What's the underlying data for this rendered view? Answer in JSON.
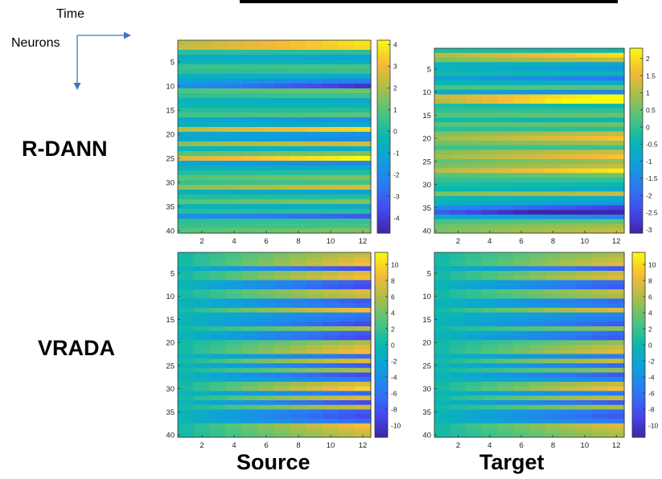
{
  "legend": {
    "time_label": "Time",
    "neurons_label": "Neurons",
    "arrow_color": "#4472c4"
  },
  "row_labels": [
    "R-DANN",
    "VRADA"
  ],
  "col_labels": [
    "Source",
    "Target"
  ],
  "chart_data": [
    {
      "type": "heatmap",
      "row": "R-DANN",
      "column": "Source",
      "x_ticks": [
        2,
        4,
        6,
        8,
        10,
        12
      ],
      "xlim": [
        0.5,
        12.5
      ],
      "y_ticks": [
        5,
        10,
        15,
        20,
        25,
        30,
        35,
        40
      ],
      "ylim": [
        0.5,
        40.5
      ],
      "colorbar_ticks": [
        4,
        3,
        2,
        1,
        0,
        -1,
        -2,
        -3,
        -4
      ],
      "clim": [
        -4.7,
        4.2
      ],
      "colormap": "parula",
      "row_base": [
        2.2,
        2.4,
        0.3,
        -0.8,
        -0.4,
        0.5,
        0.3,
        -0.6,
        -1.2,
        -1.8,
        0.8,
        0.4,
        -0.5,
        -0.3,
        0.2,
        0.6,
        -1.0,
        -0.6,
        2.2,
        -0.9,
        -1.0,
        1.6,
        -0.4,
        0.9,
        2.6,
        -1.2,
        -0.5,
        0.2,
        0.9,
        0.5,
        1.6,
        -0.6,
        0.2,
        0.9,
        -0.5,
        0.2,
        -1.8,
        0.3,
        0.5,
        0.9
      ],
      "row_drift": [
        0.8,
        0.6,
        0.0,
        -0.2,
        -0.1,
        0.1,
        0.1,
        -0.2,
        -0.6,
        -1.2,
        0.2,
        0.1,
        -0.2,
        -0.1,
        0.0,
        0.2,
        -0.4,
        -0.2,
        0.7,
        -0.4,
        -0.5,
        0.5,
        -0.2,
        0.3,
        0.8,
        -0.5,
        -0.2,
        0.0,
        0.3,
        0.1,
        0.5,
        -0.3,
        0.0,
        0.3,
        -0.2,
        0.0,
        -0.7,
        0.1,
        0.1,
        0.3
      ]
    },
    {
      "type": "heatmap",
      "row": "R-DANN",
      "column": "Target",
      "x_ticks": [
        2,
        4,
        6,
        8,
        10,
        12
      ],
      "xlim": [
        0.5,
        12.5
      ],
      "y_ticks": [
        5,
        10,
        15,
        20,
        25,
        30,
        35,
        40
      ],
      "ylim": [
        0.5,
        40.5
      ],
      "colorbar_ticks": [
        2,
        1.5,
        1,
        0.5,
        0,
        -0.5,
        -1,
        -1.5,
        -2,
        -2.5,
        -3
      ],
      "clim": [
        -3.1,
        2.3
      ],
      "colormap": "parula",
      "row_base": [
        -0.2,
        1.0,
        0.6,
        -0.5,
        -0.6,
        -0.3,
        -1.0,
        -0.4,
        0.2,
        -0.8,
        1.2,
        1.0,
        -0.2,
        0.0,
        0.3,
        -0.3,
        0.3,
        -0.1,
        0.6,
        0.9,
        0.5,
        0.1,
        0.7,
        0.9,
        0.4,
        0.6,
        1.1,
        0.3,
        0.0,
        -0.2,
        -0.4,
        0.6,
        -0.4,
        -0.6,
        -1.4,
        -2.2,
        -0.8,
        0.2,
        0.5,
        0.6
      ],
      "row_drift": [
        -0.1,
        0.5,
        0.3,
        -0.2,
        -0.3,
        -0.1,
        -0.4,
        -0.2,
        0.1,
        -0.4,
        0.6,
        0.9,
        -0.1,
        0.0,
        0.1,
        -0.1,
        0.1,
        0.0,
        0.3,
        0.4,
        0.2,
        0.0,
        0.3,
        0.4,
        0.2,
        0.3,
        0.5,
        0.1,
        0.0,
        -0.1,
        -0.2,
        0.3,
        -0.2,
        -0.3,
        -0.6,
        -0.9,
        -0.4,
        0.1,
        0.2,
        0.3
      ]
    },
    {
      "type": "heatmap",
      "row": "VRADA",
      "column": "Source",
      "x_ticks": [
        2,
        4,
        6,
        8,
        10,
        12
      ],
      "xlim": [
        0.5,
        12.5
      ],
      "y_ticks": [
        5,
        10,
        15,
        20,
        25,
        30,
        35,
        40
      ],
      "ylim": [
        0.5,
        40.5
      ],
      "colorbar_ticks": [
        10,
        8,
        6,
        4,
        2,
        0,
        -2,
        -4,
        -6,
        -8,
        -10
      ],
      "clim": [
        -11.5,
        11.5
      ],
      "colormap": "parula",
      "row_base": [
        7,
        8,
        9,
        -9,
        8,
        9,
        -8,
        -9,
        8,
        7,
        -8,
        -7,
        9,
        -6,
        -7,
        -9,
        6,
        -8,
        -9,
        6,
        8,
        9,
        -7,
        8,
        -8,
        6,
        -9,
        -6,
        8,
        10,
        -7,
        8,
        -9,
        7,
        -8,
        -9,
        -7,
        9,
        8,
        7
      ],
      "row_drift": [
        0,
        0,
        0,
        0,
        0,
        0,
        0,
        0,
        0,
        0,
        0,
        0,
        0,
        0,
        0,
        0,
        0,
        0,
        0,
        0,
        0,
        0,
        0,
        0,
        0,
        0,
        0,
        0,
        0,
        0,
        0,
        0,
        0,
        0,
        0,
        0,
        0,
        0,
        0,
        0
      ]
    },
    {
      "type": "heatmap",
      "row": "VRADA",
      "column": "Target",
      "x_ticks": [
        2,
        4,
        6,
        8,
        10,
        12
      ],
      "xlim": [
        0.5,
        12.5
      ],
      "y_ticks": [
        5,
        10,
        15,
        20,
        25,
        30,
        35,
        40
      ],
      "ylim": [
        0.5,
        40.5
      ],
      "colorbar_ticks": [
        10,
        8,
        6,
        4,
        2,
        0,
        -2,
        -4,
        -6,
        -8,
        -10
      ],
      "clim": [
        -11.5,
        11.5
      ],
      "colormap": "parula",
      "row_base": [
        6,
        7,
        8,
        -8,
        7,
        8,
        -7,
        -8,
        7,
        6,
        -7,
        -6,
        8,
        -5,
        -6,
        -8,
        5,
        -7,
        -8,
        5,
        7,
        8,
        -6,
        7,
        -7,
        5,
        -8,
        -5,
        7,
        9,
        -6,
        7,
        -8,
        6,
        -7,
        -8,
        -6,
        8,
        7,
        6
      ],
      "row_drift": [
        0,
        0,
        0,
        0,
        0,
        0,
        0,
        0,
        0,
        0,
        0,
        0,
        0,
        0,
        0,
        0,
        0,
        0,
        0,
        0,
        0,
        0,
        0,
        0,
        0,
        0,
        0,
        0,
        0,
        0,
        0,
        0,
        0,
        0,
        0,
        0,
        0,
        0,
        0,
        0
      ]
    }
  ]
}
